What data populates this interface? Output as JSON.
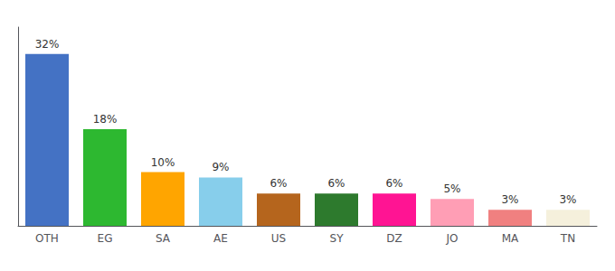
{
  "chart_data": {
    "type": "bar",
    "categories": [
      "OTH",
      "EG",
      "SA",
      "AE",
      "US",
      "SY",
      "DZ",
      "JO",
      "MA",
      "TN"
    ],
    "values": [
      32,
      18,
      10,
      9,
      6,
      6,
      6,
      5,
      3,
      3
    ],
    "value_labels": [
      "32%",
      "18%",
      "10%",
      "9%",
      "6%",
      "6%",
      "6%",
      "5%",
      "3%",
      "3%"
    ],
    "colors": [
      "#4472c4",
      "#2db830",
      "#ffa500",
      "#87ceeb",
      "#b5651d",
      "#2d7a2d",
      "#ff1493",
      "#ff9eb5",
      "#f08080",
      "#f5f0dc"
    ],
    "ylim": [
      0,
      37
    ],
    "data_labels": true,
    "tick_labels": "x",
    "grid": false
  }
}
